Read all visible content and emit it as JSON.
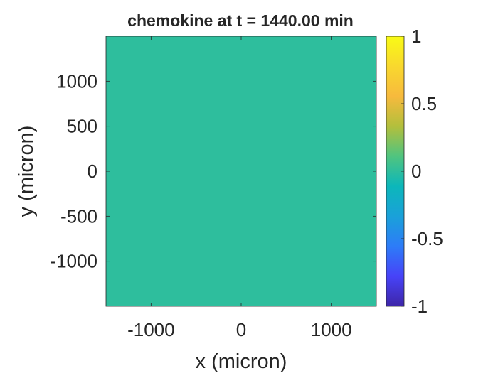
{
  "chart_data": {
    "type": "heatmap",
    "title": "chemokine at t = 1440.00 min",
    "xlabel": "x (micron)",
    "ylabel": "y (micron)",
    "xlim": [
      -1500,
      1500
    ],
    "ylim": [
      -1500,
      1500
    ],
    "x_ticks": [
      -1000,
      0,
      1000
    ],
    "x_tick_labels": [
      "-1000",
      "0",
      "1000"
    ],
    "y_ticks": [
      -1000,
      -500,
      0,
      500,
      1000
    ],
    "y_tick_labels": [
      "-1000",
      "-500",
      "0",
      "500",
      "1000"
    ],
    "field_value": 0,
    "colorbar": {
      "min": -1,
      "max": 1,
      "ticks": [
        -1,
        -0.5,
        0,
        0.5,
        1
      ],
      "tick_labels": [
        "-1",
        "-0.5",
        "0",
        "0.5",
        "1"
      ],
      "colormap": "parula",
      "colormap_stops": [
        "#3e26a8",
        "#4743f8",
        "#2d7cf8",
        "#1aa1d9",
        "#0cb7ba",
        "#50c47f",
        "#b3bf3c",
        "#f7ba3d",
        "#f9d82e",
        "#f9fb15"
      ]
    },
    "grid": false
  }
}
